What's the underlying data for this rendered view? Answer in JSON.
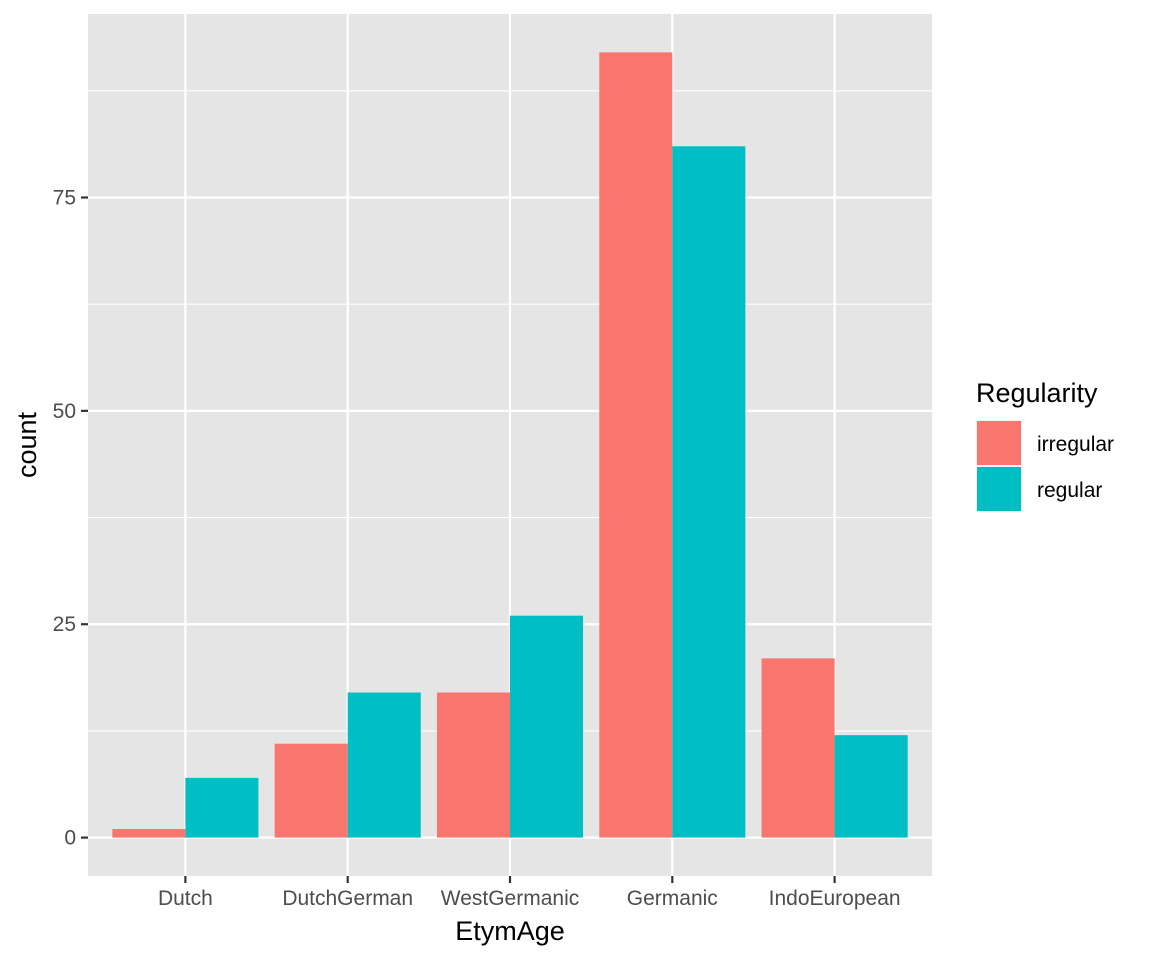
{
  "chart_data": {
    "type": "bar",
    "xlabel": "EtymAge",
    "ylabel": "count",
    "categories": [
      "Dutch",
      "DutchGerman",
      "WestGermanic",
      "Germanic",
      "IndoEuropean"
    ],
    "series": [
      {
        "name": "irregular",
        "color": "#F8766D",
        "values": [
          1,
          11,
          17,
          92,
          21
        ]
      },
      {
        "name": "regular",
        "color": "#00BFC4",
        "values": [
          7,
          17,
          26,
          81,
          12
        ]
      }
    ],
    "ylim": [
      -4.5,
      96.5
    ],
    "yticks": [
      0,
      25,
      50,
      75
    ],
    "ytick_labels": [
      "0",
      "25",
      "50",
      "75"
    ],
    "y_minor_ticks": [
      12.5,
      37.5,
      62.5,
      87.5
    ],
    "grid": true,
    "legend": {
      "title": "Regularity",
      "position": "right",
      "entries": [
        "irregular",
        "regular"
      ]
    },
    "panel_color": "#E5E5E5"
  }
}
